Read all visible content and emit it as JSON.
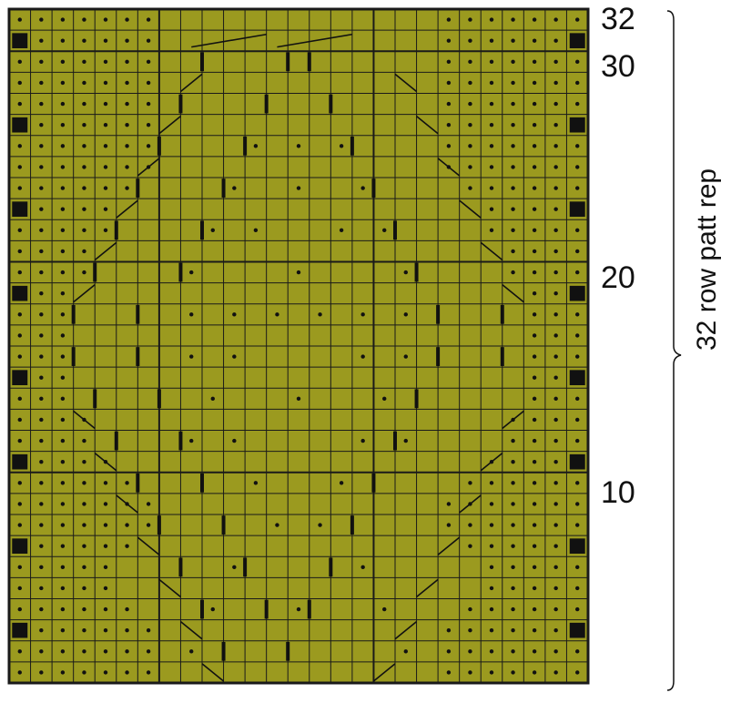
{
  "chart": {
    "colors": {
      "background": "#9b9a1f",
      "grid": "#1a1a1a",
      "symbol": "#111111"
    },
    "cols": 27,
    "rows": 32,
    "row_labels": [
      "32",
      "30",
      "20",
      "10"
    ],
    "repeat_label": "32 row patt rep",
    "symbols": {
      "dot": "purl-dot-symbol",
      "square": "slip-square-symbol",
      "bar": "twist-bar-symbol",
      "diag": "cable-diagonal-symbol"
    }
  }
}
